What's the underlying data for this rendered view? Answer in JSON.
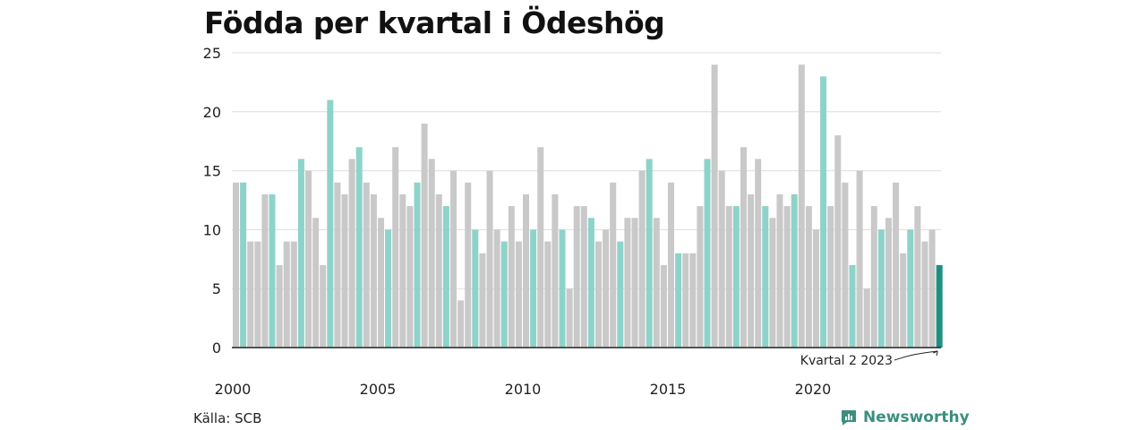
{
  "title": "Födda per kvartal i Ödeshög",
  "source": "Källa: SCB",
  "brand": "Newsworthy",
  "annotation": "Kvartal 2 2023",
  "colors": {
    "q2": "#8dd3c9",
    "other": "#c9c9c9",
    "latest": "#1f8f80",
    "grid": "#dddddd",
    "axis": "#222222"
  },
  "chart_data": {
    "type": "bar",
    "ylim": [
      0,
      25
    ],
    "yticks": [
      0,
      5,
      10,
      15,
      20,
      25
    ],
    "xticks": [
      "2000",
      "2005",
      "2010",
      "2015",
      "2020"
    ],
    "start_year": 2000,
    "highlight_quarter": 2,
    "values": [
      14,
      14,
      9,
      9,
      13,
      13,
      7,
      9,
      9,
      16,
      15,
      11,
      7,
      21,
      14,
      13,
      16,
      17,
      14,
      13,
      11,
      10,
      17,
      13,
      12,
      14,
      19,
      16,
      13,
      12,
      15,
      4,
      14,
      10,
      8,
      15,
      10,
      9,
      12,
      9,
      13,
      10,
      17,
      9,
      13,
      10,
      5,
      12,
      12,
      11,
      9,
      10,
      14,
      9,
      11,
      11,
      15,
      16,
      11,
      7,
      14,
      8,
      8,
      8,
      12,
      16,
      24,
      15,
      12,
      12,
      17,
      13,
      16,
      12,
      11,
      13,
      12,
      13,
      24,
      12,
      10,
      23,
      12,
      18,
      14,
      7,
      15,
      5,
      12,
      10,
      11,
      14,
      8,
      10,
      12,
      9,
      10,
      7
    ]
  }
}
